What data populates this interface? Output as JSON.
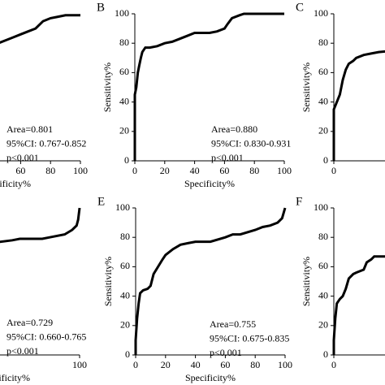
{
  "chart_data": [
    {
      "type": "line",
      "x_label": "Specificity%",
      "annotations": [
        "Area=0.801",
        "95%CI: 0.767-0.852",
        "p<0.001"
      ],
      "x": [
        0,
        0,
        5,
        10,
        20,
        30,
        40,
        45,
        50,
        55,
        60,
        65,
        70,
        75,
        80,
        85,
        90,
        100
      ],
      "values": [
        0,
        40,
        55,
        65,
        72,
        76,
        78,
        80,
        82,
        84,
        86,
        88,
        90,
        95,
        97,
        98,
        99,
        99
      ],
      "color": "#000000",
      "xlim": [
        0,
        100
      ],
      "ylim": [
        0,
        100
      ],
      "xticks": [
        60,
        80,
        100
      ]
    },
    {
      "type": "line",
      "label": "B",
      "x_label": "Specificity%",
      "y_label": "Sensitivity%",
      "annotations": [
        "Area=0.880",
        "95%CI: 0.830-0.931",
        "p<0.001"
      ],
      "x": [
        0,
        0,
        1,
        2,
        3,
        4,
        5,
        7,
        10,
        15,
        20,
        25,
        30,
        35,
        40,
        50,
        55,
        60,
        62,
        65,
        70,
        73,
        100
      ],
      "values": [
        0,
        45,
        50,
        60,
        65,
        70,
        74,
        77,
        77,
        78,
        80,
        81,
        83,
        85,
        87,
        87,
        88,
        90,
        93,
        97,
        99,
        100,
        100
      ],
      "color": "#000000",
      "xlim": [
        0,
        100
      ],
      "ylim": [
        0,
        100
      ],
      "xticks": [
        0,
        20,
        40,
        60,
        80,
        100
      ],
      "yticks": [
        0,
        20,
        40,
        60,
        80,
        100
      ]
    },
    {
      "type": "line",
      "label": "C",
      "y_label": "Sensitivity%",
      "x": [
        0,
        0,
        2,
        4,
        6,
        8,
        10,
        13,
        15,
        20,
        25,
        30,
        40,
        60,
        80,
        100
      ],
      "values": [
        0,
        35,
        40,
        45,
        55,
        62,
        66,
        68,
        70,
        72,
        73,
        74,
        75,
        85,
        95,
        100
      ],
      "color": "#000000",
      "xlim": [
        0,
        100
      ],
      "ylim": [
        0,
        100
      ],
      "xticks": [
        0
      ],
      "yticks": [
        0,
        20,
        40,
        60,
        80,
        100
      ]
    },
    {
      "type": "line",
      "x_label": "Specificity%",
      "annotations": [
        "Area=0.729",
        "95%CI: 0.660-0.765",
        "p<0.001"
      ],
      "x": [
        0,
        0,
        5,
        10,
        20,
        30,
        40,
        55,
        60,
        75,
        80,
        90,
        95,
        98,
        99,
        100
      ],
      "values": [
        0,
        30,
        50,
        60,
        68,
        73,
        76,
        78,
        79,
        79,
        80,
        82,
        85,
        88,
        92,
        100
      ],
      "color": "#000000",
      "xlim": [
        0,
        100
      ],
      "ylim": [
        0,
        100
      ],
      "xticks": [
        100
      ]
    },
    {
      "type": "line",
      "label": "E",
      "x_label": "Specificity%",
      "y_label": "Sensitivity%",
      "annotations": [
        "Area=0.755",
        "95%CI: 0.675-0.835",
        "p<0.001"
      ],
      "x": [
        0,
        0,
        1,
        2,
        3,
        5,
        8,
        10,
        12,
        15,
        18,
        20,
        25,
        30,
        35,
        40,
        50,
        60,
        65,
        70,
        80,
        85,
        90,
        95,
        98,
        100
      ],
      "values": [
        0,
        10,
        25,
        35,
        42,
        44,
        45,
        47,
        55,
        60,
        65,
        68,
        72,
        75,
        76,
        77,
        77,
        80,
        82,
        82,
        85,
        87,
        88,
        90,
        93,
        100
      ],
      "color": "#000000",
      "xlim": [
        0,
        100
      ],
      "ylim": [
        0,
        100
      ],
      "xticks": [
        0,
        20,
        40,
        60,
        80,
        100
      ],
      "yticks": [
        0,
        20,
        40,
        60,
        80,
        100
      ]
    },
    {
      "type": "line",
      "label": "F",
      "y_label": "Sensitivity%",
      "x": [
        0,
        0,
        1,
        2,
        4,
        6,
        8,
        10,
        13,
        15,
        20,
        22,
        25,
        27,
        35,
        60,
        100
      ],
      "values": [
        0,
        10,
        25,
        35,
        38,
        40,
        45,
        52,
        55,
        56,
        58,
        63,
        65,
        67,
        67,
        80,
        100
      ],
      "color": "#000000",
      "xlim": [
        0,
        100
      ],
      "ylim": [
        0,
        100
      ],
      "xticks": [
        0
      ],
      "yticks": [
        0,
        20,
        40,
        60,
        80,
        100
      ]
    }
  ]
}
